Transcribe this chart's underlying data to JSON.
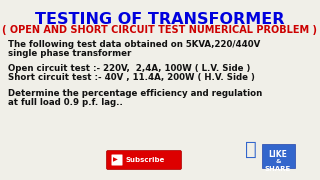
{
  "title": "TESTING OF TRANSFORMER",
  "subtitle": "( OPEN AND SHORT CIRCUIT TEST NUMERICAL PROBLEM )",
  "line1": "The following test data obtained on 5KVA,220/440V",
  "line2": "single phase transformer",
  "line3": "Open circuit test :- 220V,  2,4A, 100W ( L.V. Side )",
  "line4": "Short circuit test :- 40V , 11.4A, 200W ( H.V. Side )",
  "line5": "Determine the percentage efficiency and regulation",
  "line6": "at full load 0.9 p.f. lag..",
  "bg_color": "#f0efe8",
  "title_color": "#0000dd",
  "subtitle_color": "#cc0000",
  "body_color": "#111111",
  "title_fontsize": 11.5,
  "subtitle_fontsize": 7.0,
  "body_fontsize": 6.2
}
